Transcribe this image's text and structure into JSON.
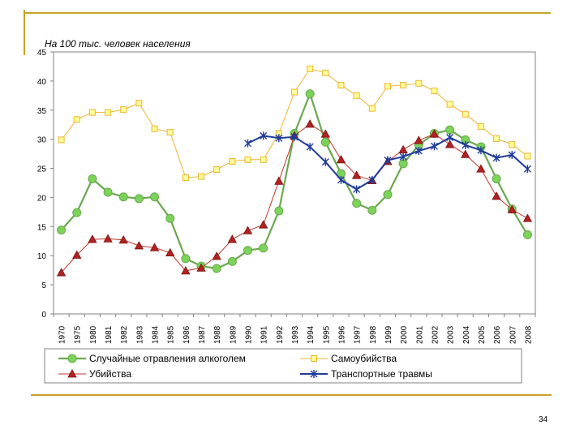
{
  "page_number": "34",
  "colors": {
    "alcohol": "#6aa84f",
    "alcohol_marker": "#7cd35a",
    "suicide": "#f0b433",
    "suicide_marker": "#ffff99",
    "murder": "#c0392b",
    "murder_marker": "#b22222",
    "transport": "#1f3c99",
    "accent": "#c9a227"
  },
  "chart_data": {
    "type": "line",
    "title": "На 100 тыс. человек населения",
    "xlabel": "",
    "ylabel": "",
    "ylim": [
      0,
      45
    ],
    "yticks": [
      0,
      5,
      10,
      15,
      20,
      25,
      30,
      35,
      40,
      45
    ],
    "categories": [
      "1970",
      "1975",
      "1980",
      "1981",
      "1982",
      "1983",
      "1984",
      "1985",
      "1986",
      "1987",
      "1988",
      "1989",
      "1990",
      "1991",
      "1992",
      "1993",
      "1994",
      "1995",
      "1996",
      "1997",
      "1998",
      "1999",
      "2000",
      "2001",
      "2002",
      "2003",
      "2004",
      "2005",
      "2006",
      "2007",
      "2008"
    ],
    "series": [
      {
        "name": "Случайные отравления алкоголем",
        "key": "alcohol",
        "marker": "circle",
        "values": [
          14.4,
          17.4,
          23.2,
          20.9,
          20.1,
          19.8,
          20.1,
          16.4,
          9.5,
          8.2,
          7.8,
          9.0,
          10.9,
          11.3,
          17.7,
          31.0,
          37.8,
          29.5,
          24.1,
          19.0,
          17.8,
          20.5,
          25.8,
          29.0,
          31.0,
          31.6,
          29.9,
          28.7,
          23.2,
          18.0,
          13.6
        ]
      },
      {
        "name": "Самоубийства",
        "key": "suicide",
        "marker": "square",
        "values": [
          29.9,
          33.4,
          34.6,
          34.6,
          35.1,
          36.2,
          31.8,
          31.2,
          23.4,
          23.6,
          24.8,
          26.2,
          26.5,
          26.5,
          31.0,
          38.1,
          42.1,
          41.4,
          39.3,
          37.5,
          35.3,
          39.1,
          39.3,
          39.6,
          38.3,
          36.0,
          34.3,
          32.2,
          30.1,
          29.1,
          27.1
        ]
      },
      {
        "name": "Убийства",
        "key": "murder",
        "marker": "triangle",
        "values": [
          7.1,
          10.1,
          12.8,
          12.9,
          12.7,
          11.7,
          11.4,
          10.5,
          7.4,
          7.9,
          9.9,
          12.8,
          14.3,
          15.3,
          22.8,
          30.6,
          32.6,
          30.9,
          26.5,
          23.8,
          22.9,
          26.2,
          28.2,
          29.8,
          30.9,
          29.1,
          27.4,
          24.9,
          20.2,
          17.9,
          16.4
        ]
      },
      {
        "name": "Транспортные травмы",
        "key": "transport",
        "marker": "asterisk",
        "values": [
          null,
          null,
          null,
          null,
          null,
          null,
          null,
          null,
          null,
          null,
          null,
          null,
          29.3,
          30.6,
          30.2,
          30.4,
          28.7,
          26.1,
          23.0,
          21.4,
          23.0,
          26.4,
          27.0,
          28.0,
          28.8,
          30.3,
          29.0,
          28.1,
          26.8,
          27.3,
          24.9
        ]
      }
    ],
    "legend_position": "bottom",
    "grid": false
  }
}
